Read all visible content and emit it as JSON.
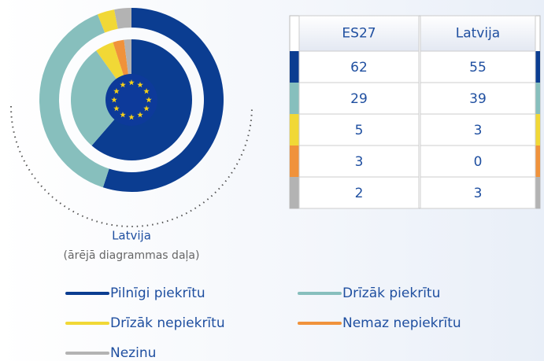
{
  "chart_data": {
    "type": "nested-donut",
    "categories": [
      "Pilnīgi piekrītu",
      "Drīzāk piekrītu",
      "Drīzāk nepiekrītu",
      "Nemaz nepiekrītu",
      "Nezinu"
    ],
    "colors": [
      "#0b3d91",
      "#87bfbd",
      "#f1d836",
      "#f0923b",
      "#b3b3b3"
    ],
    "series": [
      {
        "name": "ES27",
        "values": [
          62,
          29,
          5,
          3,
          2
        ]
      },
      {
        "name": "Latvija",
        "values": [
          55,
          39,
          3,
          0,
          3
        ]
      }
    ],
    "outer_label": "Latvija",
    "outer_note": "(ārējā diagrammas daļa)"
  }
}
